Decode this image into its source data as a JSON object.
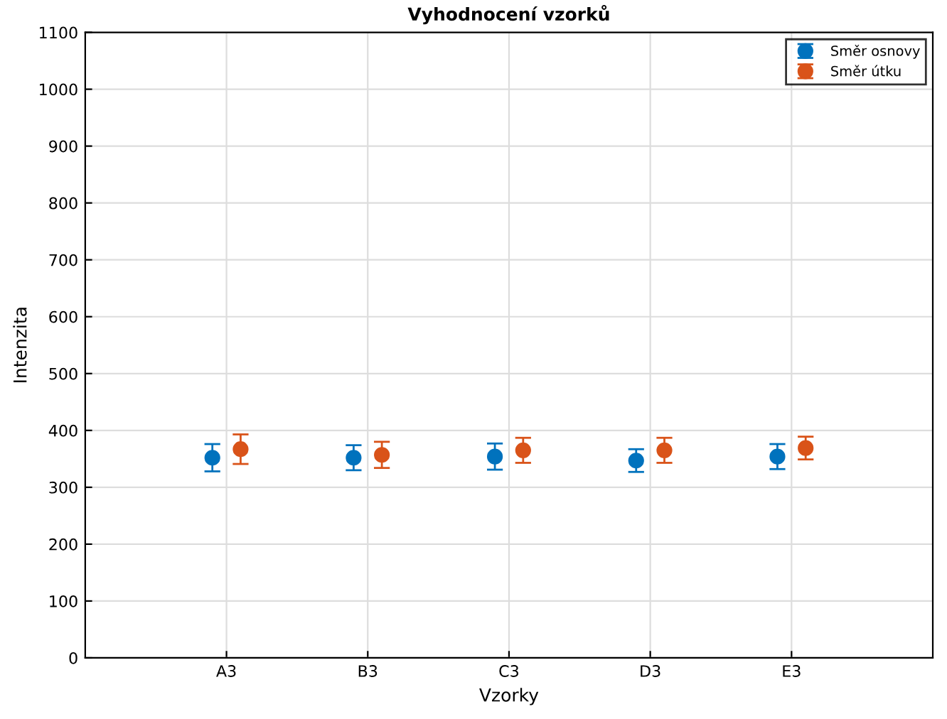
{
  "chart_data": {
    "type": "scatter",
    "title": "Vyhodnocení vzorků",
    "xlabel": "Vzorky",
    "ylabel": "Intenzita",
    "categories": [
      "A3",
      "B3",
      "C3",
      "D3",
      "E3"
    ],
    "series": [
      {
        "name": "Směr osnovy",
        "color": "#0072bd",
        "values": [
          352,
          352,
          354,
          347,
          354
        ],
        "errors": [
          24,
          22,
          23,
          20,
          22
        ]
      },
      {
        "name": "Směr útku",
        "color": "#d95319",
        "values": [
          367,
          357,
          365,
          365,
          369
        ],
        "errors": [
          26,
          23,
          22,
          22,
          20
        ]
      }
    ],
    "ylim": [
      0,
      1100
    ],
    "yticks": [
      0,
      100,
      200,
      300,
      400,
      500,
      600,
      700,
      800,
      900,
      1000,
      1100
    ],
    "grid": true,
    "legend": "top right",
    "marker": "circle"
  }
}
